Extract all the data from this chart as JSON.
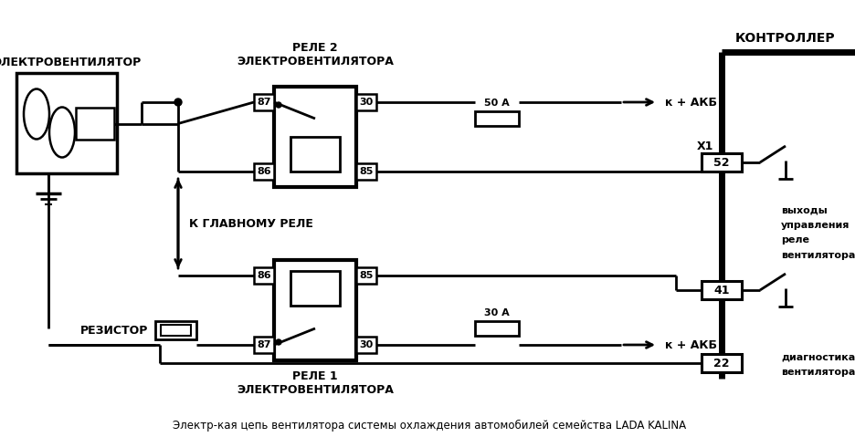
{
  "title": "Электр-кая цепь вентилятора системы охлаждения автомобилей семейства LADA KALINA",
  "label_elektrovent": "ЭЛЕКТРОВЕНТИЛЯТОР",
  "label_relay2": "РЕЛЕ 2\nЭЛЕКТРОВЕНТИЛЯТОРА",
  "label_kontroller": "КОНТРОЛЛЕР",
  "label_k_glavnomu": "К ГЛАВНОМУ РЕЛЕ",
  "label_rezistor": "РЕЗИСТОР",
  "label_relay1": "РЕЛЕ 1\nЭЛЕКТРОВЕНТИЛЯТОРА",
  "label_50A": "50 А",
  "label_30A": "30 А",
  "label_akb1": "к + АКБ",
  "label_akb2": "к + АКБ",
  "label_x1": "X1",
  "label_52": "52",
  "label_41": "41",
  "label_22": "22",
  "label_vyhody": "выходы\nуправления\nреле\nвентилятора",
  "label_diagnostika": "диагностика\nвентилятора",
  "bg_color": "#ffffff",
  "line_color": "#000000",
  "fig_width": 9.37,
  "fig_height": 4.79
}
